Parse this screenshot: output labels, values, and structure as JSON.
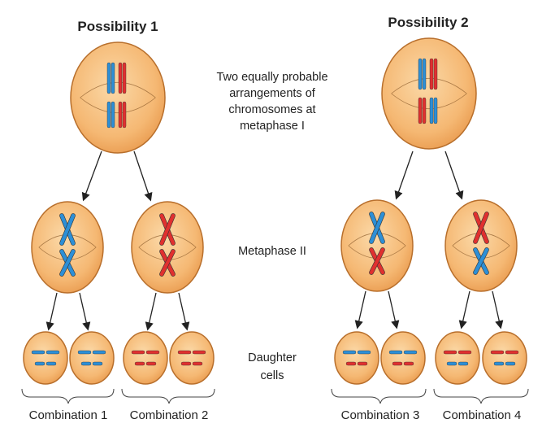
{
  "labels": {
    "possibility_1": "Possibility 1",
    "possibility_2": "Possibility 2",
    "metaphase1_line1": "Two equally probable",
    "metaphase1_line2": "arrangements of",
    "metaphase1_line3": "chromosomes at",
    "metaphase1_line4": "metaphase I",
    "metaphase2": "Metaphase II",
    "daughter_line1": "Daughter",
    "daughter_line2": "cells"
  },
  "combinations": [
    "Combination 1",
    "Combination 2",
    "Combination 3",
    "Combination 4"
  ],
  "colors": {
    "cell_fill": "#f6c07d",
    "cell_stroke": "#b86f2c",
    "maternal": "#2d8fd6",
    "paternal": "#e0302f",
    "spindle": "#8a5a2a",
    "arrow": "#222222"
  }
}
